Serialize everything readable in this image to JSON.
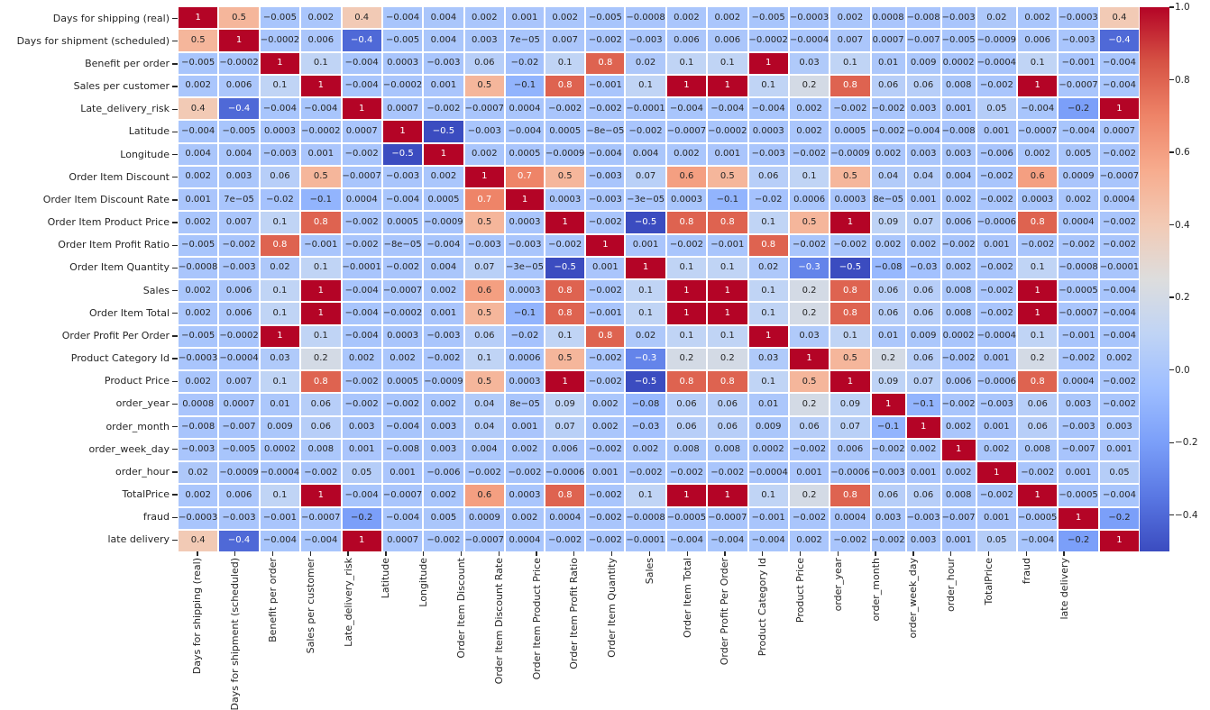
{
  "chart_data": {
    "type": "heatmap",
    "title": "",
    "description": "Correlation matrix heatmap with annotated coefficients",
    "labels": [
      "Days for shipping (real)",
      "Days for shipment (scheduled)",
      "Benefit per order",
      "Sales per customer",
      "Late_delivery_risk",
      "Latitude",
      "Longitude",
      "Order Item Discount",
      "Order Item Discount Rate",
      "Order Item Product Price",
      "Order Item Profit Ratio",
      "Order Item Quantity",
      "Sales",
      "Order Item Total",
      "Order Profit Per Order",
      "Product Category Id",
      "Product Price",
      "order_year",
      "order_month",
      "order_week_day",
      "order_hour",
      "TotalPrice",
      "fraud",
      "late delivery"
    ],
    "matrix": [
      [
        "1",
        "0.5",
        "-0.005",
        "0.002",
        "0.4",
        "-0.004",
        "0.004",
        "0.002",
        "0.001",
        "0.002",
        "-0.005",
        "-0.0008",
        "0.002",
        "0.002",
        "-0.005",
        "-0.0003",
        "0.002",
        "0.0008",
        "-0.008",
        "-0.003",
        "0.02",
        "0.002",
        "-0.0003",
        "0.4"
      ],
      [
        "0.5",
        "1",
        "-0.0002",
        "0.006",
        "-0.4",
        "-0.005",
        "0.004",
        "0.003",
        "7e-05",
        "0.007",
        "-0.002",
        "-0.003",
        "0.006",
        "0.006",
        "-0.0002",
        "-0.0004",
        "0.007",
        "0.0007",
        "-0.007",
        "-0.005",
        "-0.0009",
        "0.006",
        "-0.003",
        "-0.4"
      ],
      [
        "-0.005",
        "-0.0002",
        "1",
        "0.1",
        "-0.004",
        "0.0003",
        "-0.003",
        "0.06",
        "-0.02",
        "0.1",
        "0.8",
        "0.02",
        "0.1",
        "0.1",
        "1",
        "0.03",
        "0.1",
        "0.01",
        "0.009",
        "0.0002",
        "-0.0004",
        "0.1",
        "-0.001",
        "-0.004"
      ],
      [
        "0.002",
        "0.006",
        "0.1",
        "1",
        "-0.004",
        "-0.0002",
        "0.001",
        "0.5",
        "-0.1",
        "0.8",
        "-0.001",
        "0.1",
        "1",
        "1",
        "0.1",
        "0.2",
        "0.8",
        "0.06",
        "0.06",
        "0.008",
        "-0.002",
        "1",
        "-0.0007",
        "-0.004"
      ],
      [
        "0.4",
        "-0.4",
        "-0.004",
        "-0.004",
        "1",
        "0.0007",
        "-0.002",
        "-0.0007",
        "0.0004",
        "-0.002",
        "-0.002",
        "-0.0001",
        "-0.004",
        "-0.004",
        "-0.004",
        "0.002",
        "-0.002",
        "-0.002",
        "0.003",
        "0.001",
        "0.05",
        "-0.004",
        "-0.2",
        "1"
      ],
      [
        "-0.004",
        "-0.005",
        "0.0003",
        "-0.0002",
        "0.0007",
        "1",
        "-0.5",
        "-0.003",
        "-0.004",
        "0.0005",
        "-8e-05",
        "-0.002",
        "-0.0007",
        "-0.0002",
        "0.0003",
        "0.002",
        "0.0005",
        "-0.002",
        "-0.004",
        "-0.008",
        "0.001",
        "-0.0007",
        "-0.004",
        "0.0007"
      ],
      [
        "0.004",
        "0.004",
        "-0.003",
        "0.001",
        "-0.002",
        "-0.5",
        "1",
        "0.002",
        "0.0005",
        "-0.0009",
        "-0.004",
        "0.004",
        "0.002",
        "0.001",
        "-0.003",
        "-0.002",
        "-0.0009",
        "0.002",
        "0.003",
        "0.003",
        "-0.006",
        "0.002",
        "0.005",
        "-0.002"
      ],
      [
        "0.002",
        "0.003",
        "0.06",
        "0.5",
        "-0.0007",
        "-0.003",
        "0.002",
        "1",
        "0.7",
        "0.5",
        "-0.003",
        "0.07",
        "0.6",
        "0.5",
        "0.06",
        "0.1",
        "0.5",
        "0.04",
        "0.04",
        "0.004",
        "-0.002",
        "0.6",
        "0.0009",
        "-0.0007"
      ],
      [
        "0.001",
        "7e-05",
        "-0.02",
        "-0.1",
        "0.0004",
        "-0.004",
        "0.0005",
        "0.7",
        "1",
        "0.0003",
        "-0.003",
        "-3e-05",
        "0.0003",
        "-0.1",
        "-0.02",
        "0.0006",
        "0.0003",
        "8e-05",
        "0.001",
        "0.002",
        "-0.002",
        "0.0003",
        "0.002",
        "0.0004"
      ],
      [
        "0.002",
        "0.007",
        "0.1",
        "0.8",
        "-0.002",
        "0.0005",
        "-0.0009",
        "0.5",
        "0.0003",
        "1",
        "-0.002",
        "-0.5",
        "0.8",
        "0.8",
        "0.1",
        "0.5",
        "1",
        "0.09",
        "0.07",
        "0.006",
        "-0.0006",
        "0.8",
        "0.0004",
        "-0.002"
      ],
      [
        "-0.005",
        "-0.002",
        "0.8",
        "-0.001",
        "-0.002",
        "-8e-05",
        "-0.004",
        "-0.003",
        "-0.003",
        "-0.002",
        "1",
        "0.001",
        "-0.002",
        "-0.001",
        "0.8",
        "-0.002",
        "-0.002",
        "0.002",
        "0.002",
        "-0.002",
        "0.001",
        "-0.002",
        "-0.002",
        "-0.002"
      ],
      [
        "-0.0008",
        "-0.003",
        "0.02",
        "0.1",
        "-0.0001",
        "-0.002",
        "0.004",
        "0.07",
        "-3e-05",
        "-0.5",
        "0.001",
        "1",
        "0.1",
        "0.1",
        "0.02",
        "-0.3",
        "-0.5",
        "-0.08",
        "-0.03",
        "0.002",
        "-0.002",
        "0.1",
        "-0.0008",
        "-0.0001"
      ],
      [
        "0.002",
        "0.006",
        "0.1",
        "1",
        "-0.004",
        "-0.0007",
        "0.002",
        "0.6",
        "0.0003",
        "0.8",
        "-0.002",
        "0.1",
        "1",
        "1",
        "0.1",
        "0.2",
        "0.8",
        "0.06",
        "0.06",
        "0.008",
        "-0.002",
        "1",
        "-0.0005",
        "-0.004"
      ],
      [
        "0.002",
        "0.006",
        "0.1",
        "1",
        "-0.004",
        "-0.0002",
        "0.001",
        "0.5",
        "-0.1",
        "0.8",
        "-0.001",
        "0.1",
        "1",
        "1",
        "0.1",
        "0.2",
        "0.8",
        "0.06",
        "0.06",
        "0.008",
        "-0.002",
        "1",
        "-0.0007",
        "-0.004"
      ],
      [
        "-0.005",
        "-0.0002",
        "1",
        "0.1",
        "-0.004",
        "0.0003",
        "-0.003",
        "0.06",
        "-0.02",
        "0.1",
        "0.8",
        "0.02",
        "0.1",
        "0.1",
        "1",
        "0.03",
        "0.1",
        "0.01",
        "0.009",
        "0.0002",
        "-0.0004",
        "0.1",
        "-0.001",
        "-0.004"
      ],
      [
        "-0.0003",
        "-0.0004",
        "0.03",
        "0.2",
        "0.002",
        "0.002",
        "-0.002",
        "0.1",
        "0.0006",
        "0.5",
        "-0.002",
        "-0.3",
        "0.2",
        "0.2",
        "0.03",
        "1",
        "0.5",
        "0.2",
        "0.06",
        "-0.002",
        "0.001",
        "0.2",
        "-0.002",
        "0.002"
      ],
      [
        "0.002",
        "0.007",
        "0.1",
        "0.8",
        "-0.002",
        "0.0005",
        "-0.0009",
        "0.5",
        "0.0003",
        "1",
        "-0.002",
        "-0.5",
        "0.8",
        "0.8",
        "0.1",
        "0.5",
        "1",
        "0.09",
        "0.07",
        "0.006",
        "-0.0006",
        "0.8",
        "0.0004",
        "-0.002"
      ],
      [
        "0.0008",
        "0.0007",
        "0.01",
        "0.06",
        "-0.002",
        "-0.002",
        "0.002",
        "0.04",
        "8e-05",
        "0.09",
        "0.002",
        "-0.08",
        "0.06",
        "0.06",
        "0.01",
        "0.2",
        "0.09",
        "1",
        "-0.1",
        "-0.002",
        "-0.003",
        "0.06",
        "0.003",
        "-0.002"
      ],
      [
        "-0.008",
        "-0.007",
        "0.009",
        "0.06",
        "0.003",
        "-0.004",
        "0.003",
        "0.04",
        "0.001",
        "0.07",
        "0.002",
        "-0.03",
        "0.06",
        "0.06",
        "0.009",
        "0.06",
        "0.07",
        "-0.1",
        "1",
        "0.002",
        "0.001",
        "0.06",
        "-0.003",
        "0.003"
      ],
      [
        "-0.003",
        "-0.005",
        "0.0002",
        "0.008",
        "0.001",
        "-0.008",
        "0.003",
        "0.004",
        "0.002",
        "0.006",
        "-0.002",
        "0.002",
        "0.008",
        "0.008",
        "0.0002",
        "-0.002",
        "0.006",
        "-0.002",
        "0.002",
        "1",
        "0.002",
        "0.008",
        "-0.007",
        "0.001"
      ],
      [
        "0.02",
        "-0.0009",
        "-0.0004",
        "-0.002",
        "0.05",
        "0.001",
        "-0.006",
        "-0.002",
        "-0.002",
        "-0.0006",
        "0.001",
        "-0.002",
        "-0.002",
        "-0.002",
        "-0.0004",
        "0.001",
        "-0.0006",
        "-0.003",
        "0.001",
        "0.002",
        "1",
        "-0.002",
        "0.001",
        "0.05"
      ],
      [
        "0.002",
        "0.006",
        "0.1",
        "1",
        "-0.004",
        "-0.0007",
        "0.002",
        "0.6",
        "0.0003",
        "0.8",
        "-0.002",
        "0.1",
        "1",
        "1",
        "0.1",
        "0.2",
        "0.8",
        "0.06",
        "0.06",
        "0.008",
        "-0.002",
        "1",
        "-0.0005",
        "-0.004"
      ],
      [
        "-0.0003",
        "-0.003",
        "-0.001",
        "-0.0007",
        "-0.2",
        "-0.004",
        "0.005",
        "0.0009",
        "0.002",
        "0.0004",
        "-0.002",
        "-0.0008",
        "-0.0005",
        "-0.0007",
        "-0.001",
        "-0.002",
        "0.0004",
        "0.003",
        "-0.003",
        "-0.007",
        "0.001",
        "-0.0005",
        "1",
        "-0.2"
      ],
      [
        "0.4",
        "-0.4",
        "-0.004",
        "-0.004",
        "1",
        "0.0007",
        "-0.002",
        "-0.0007",
        "0.0004",
        "-0.002",
        "-0.002",
        "-0.0001",
        "-0.004",
        "-0.004",
        "-0.004",
        "0.002",
        "-0.002",
        "-0.002",
        "0.003",
        "0.001",
        "0.05",
        "-0.004",
        "-0.2",
        "1"
      ]
    ],
    "colormap": {
      "name": "coolwarm",
      "vmin": -0.5,
      "vmax": 1.0,
      "stops": [
        "#3b4cc0",
        "#5977e3",
        "#7b9ff9",
        "#9ebeff",
        "#c0d4f5",
        "#dddddd",
        "#f2cab5",
        "#f7ac8e",
        "#ee8468",
        "#d65244",
        "#b40426"
      ]
    },
    "colorbar_ticks": [
      {
        "label": "1.0",
        "value": 1.0
      },
      {
        "label": "0.8",
        "value": 0.8
      },
      {
        "label": "0.6",
        "value": 0.6
      },
      {
        "label": "0.4",
        "value": 0.4
      },
      {
        "label": "0.2",
        "value": 0.2
      },
      {
        "label": "0.0",
        "value": 0.0
      },
      {
        "label": "−0.2",
        "value": -0.2
      },
      {
        "label": "−0.4",
        "value": -0.4
      }
    ],
    "annotation_colors": {
      "dark_text": "#262626",
      "light_text": "#ffffff",
      "gridline": "#ffffff"
    },
    "legend_position": "right",
    "grid": false
  }
}
